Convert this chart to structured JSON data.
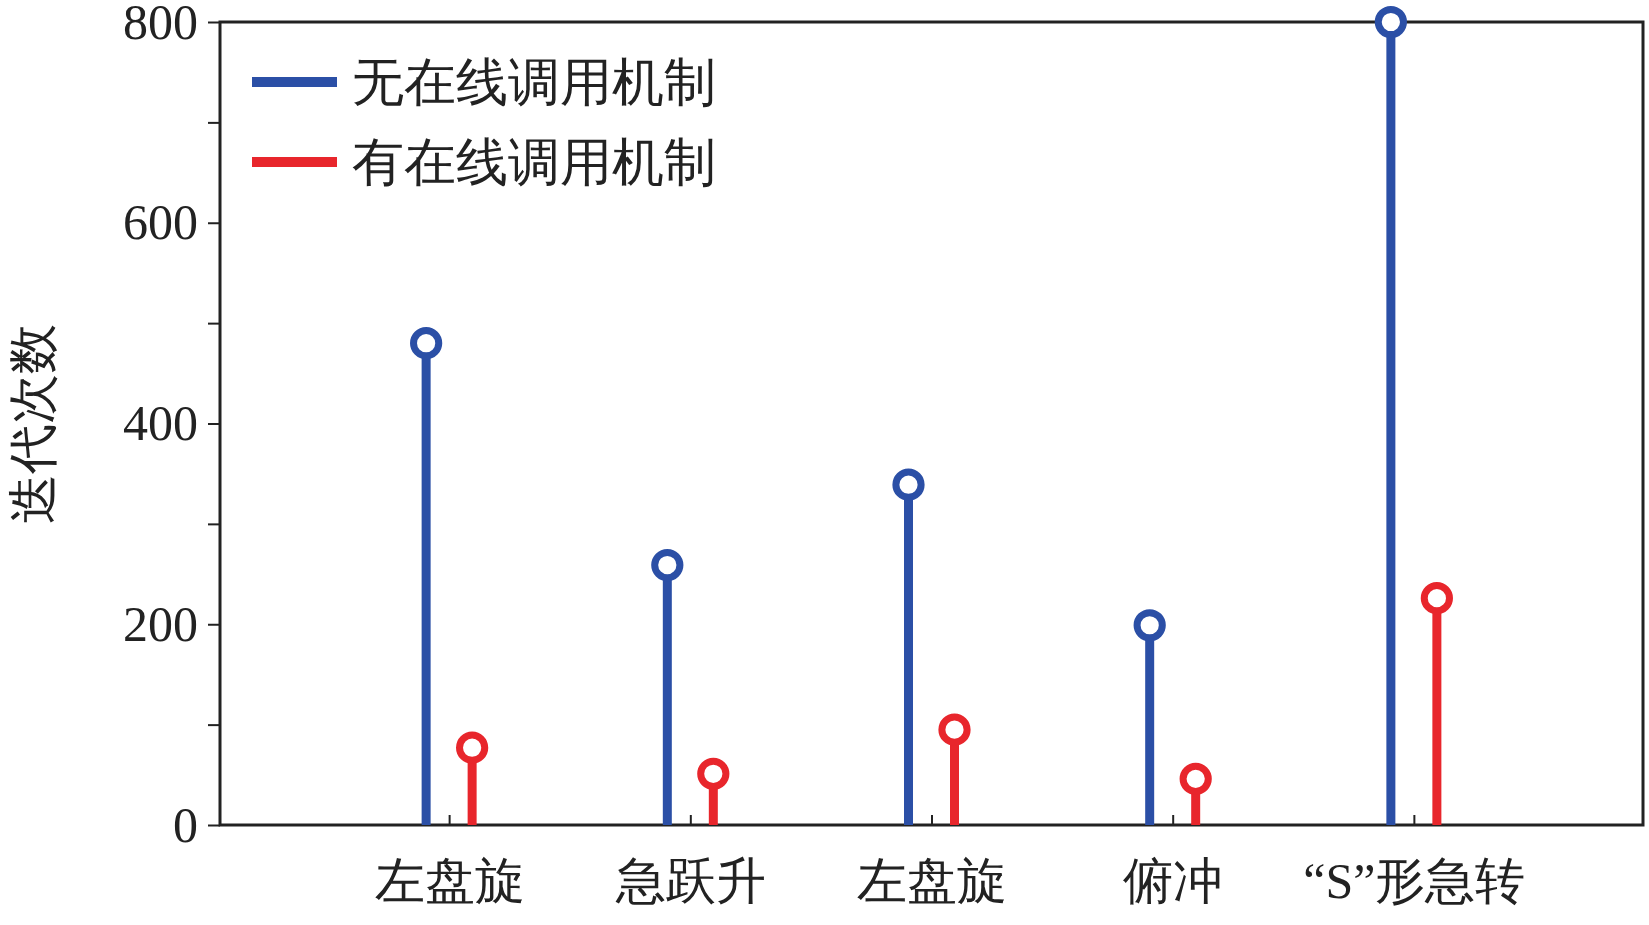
{
  "chart_data": {
    "type": "lollipop",
    "ylabel": "迭代次数",
    "categories": [
      "左盘旋",
      "急跃升",
      "左盘旋",
      "俯冲",
      "“S”形急转"
    ],
    "series": [
      {
        "name": "无在线调用机制",
        "color": "#2b4fa6",
        "values": [
          480,
          259,
          339,
          199,
          800
        ]
      },
      {
        "name": "有在线调用机制",
        "color": "#e8262c",
        "values": [
          77,
          51,
          95,
          46,
          226
        ]
      }
    ],
    "ylim": [
      0,
      800
    ],
    "yticks": [
      0,
      {
        "value": 100,
        "label": null
      },
      200,
      {
        "value": 300,
        "label": null
      },
      400,
      {
        "value": 500,
        "label": null
      },
      600,
      {
        "value": 700,
        "label": null
      },
      800
    ],
    "legend": "top left",
    "marker": "circle",
    "line_style": "solid"
  }
}
